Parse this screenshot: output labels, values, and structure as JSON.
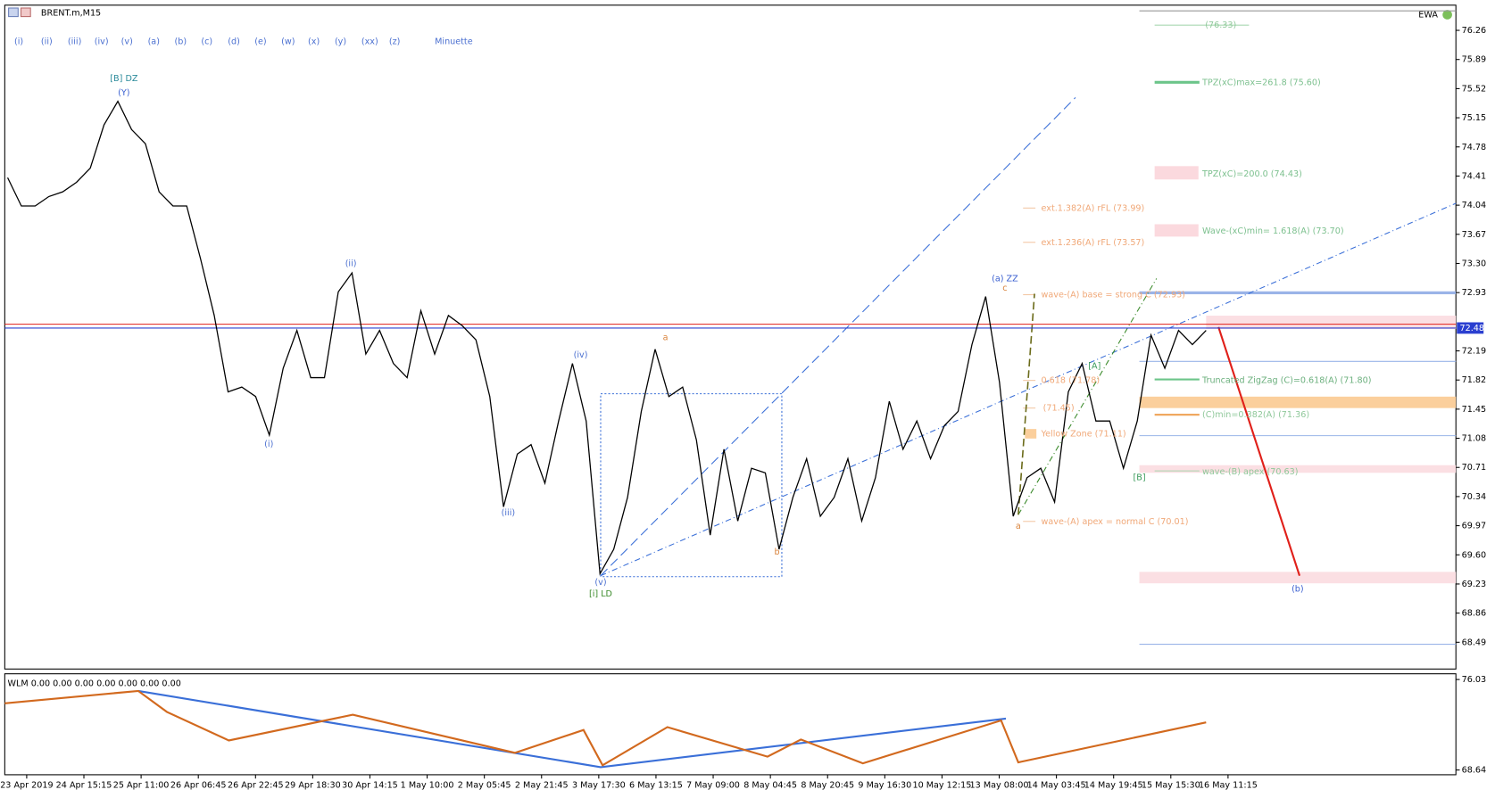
{
  "window": {
    "title": "BRENT.m,M15",
    "indicator_name": "EWA"
  },
  "wave_buttons": [
    "(i)",
    "(ii)",
    "(iii)",
    "(iv)",
    "(v)",
    "(a)",
    "(b)",
    "(c)",
    "(d)",
    "(e)",
    "(w)",
    "(x)",
    "(y)",
    "(xx)",
    "(z)",
    "Minuette"
  ],
  "chart_data": {
    "type": "line",
    "color": "#000000",
    "values": [
      74.39,
      74.03,
      74.03,
      74.15,
      74.21,
      74.33,
      74.51,
      75.06,
      75.36,
      75.0,
      74.82,
      74.21,
      74.03,
      74.03,
      73.36,
      72.64,
      71.67,
      71.73,
      71.61,
      71.12,
      71.97,
      72.45,
      71.85,
      71.85,
      72.94,
      73.18,
      72.15,
      72.45,
      72.03,
      71.85,
      72.7,
      72.15,
      72.64,
      72.51,
      72.33,
      71.61,
      70.21,
      70.88,
      71.0,
      70.51,
      71.3,
      72.03,
      71.3,
      69.36,
      69.67,
      70.33,
      71.42,
      72.21,
      71.61,
      71.73,
      71.06,
      69.85,
      70.94,
      70.03,
      70.7,
      70.64,
      69.67,
      70.33,
      70.82,
      70.09,
      70.33,
      70.82,
      70.03,
      70.58,
      71.55,
      70.94,
      71.3,
      70.82,
      71.24,
      71.42,
      72.27,
      72.88,
      71.79,
      70.09,
      70.58,
      70.7,
      70.27,
      71.67,
      72.03,
      71.3,
      71.3,
      70.7,
      71.3,
      72.39,
      71.97,
      72.45,
      72.27,
      72.45
    ],
    "ylim": [
      68.15,
      76.58
    ],
    "yticks": [
      76.26,
      75.89,
      75.52,
      75.15,
      74.78,
      74.41,
      74.04,
      73.67,
      {
        "value": 73.3,
        "label": "73.30"
      },
      72.93,
      72.19,
      71.82,
      71.45,
      71.08,
      70.71,
      70.34,
      69.97,
      {
        "value": 69.6,
        "label": "69.60"
      },
      69.23,
      68.86,
      68.49
    ],
    "current_price": 72.48,
    "x_tick_labels": [
      "23 Apr 2019",
      "24 Apr 15:15",
      "25 Apr 11:00",
      "26 Apr 06:45",
      "26 Apr 22:45",
      "29 Apr 18:30",
      "30 Apr 14:15",
      "1 May 10:00",
      "2 May 05:45",
      "2 May 21:45",
      "3 May 17:30",
      "6 May 13:15",
      "7 May 09:00",
      "8 May 04:45",
      "8 May 20:45",
      "9 May 16:30",
      "10 May 12:15",
      "13 May 08:00",
      "14 May 03:45",
      "14 May 19:45",
      "15 May 15:30",
      "16 May 11:15"
    ],
    "annotations": [
      "[B] DZ",
      "(Y)",
      "(ii)",
      "(i)",
      "(iii)",
      "(iv)",
      "(v)",
      "[i] LD",
      "a",
      "b",
      "(a) ZZ",
      "c",
      "a",
      "[A]",
      "[B]",
      "(b)"
    ],
    "levels": [
      "ext.1.382(A) rFL (73.99)",
      "ext.1.236(A) rFL (73.57)",
      "wave-(A) base = strong C (72.93)",
      "0.618 (71.78)",
      "(71.45)",
      "Yellow Zone (71.11)",
      "wave-(A) apex = normal C (70.01)",
      "(76.33)",
      "TPZ(xC)max=261.8 (75.60)",
      "TPZ(xC)=200.0 (74.43)",
      "Wave-(xC)min= 1.618(A) (73.70)",
      "Truncated ZigZag (C)=0.618(A) (71.80)",
      "(C)min=0.382(A) (71.36)",
      "wave-(B) apex (70.63)"
    ]
  },
  "indicator": {
    "label": "WLM 0.00 0.00 0.00 0.00 0.00 0.00 0.00",
    "yticks": [
      76.03,
      68.64
    ]
  }
}
